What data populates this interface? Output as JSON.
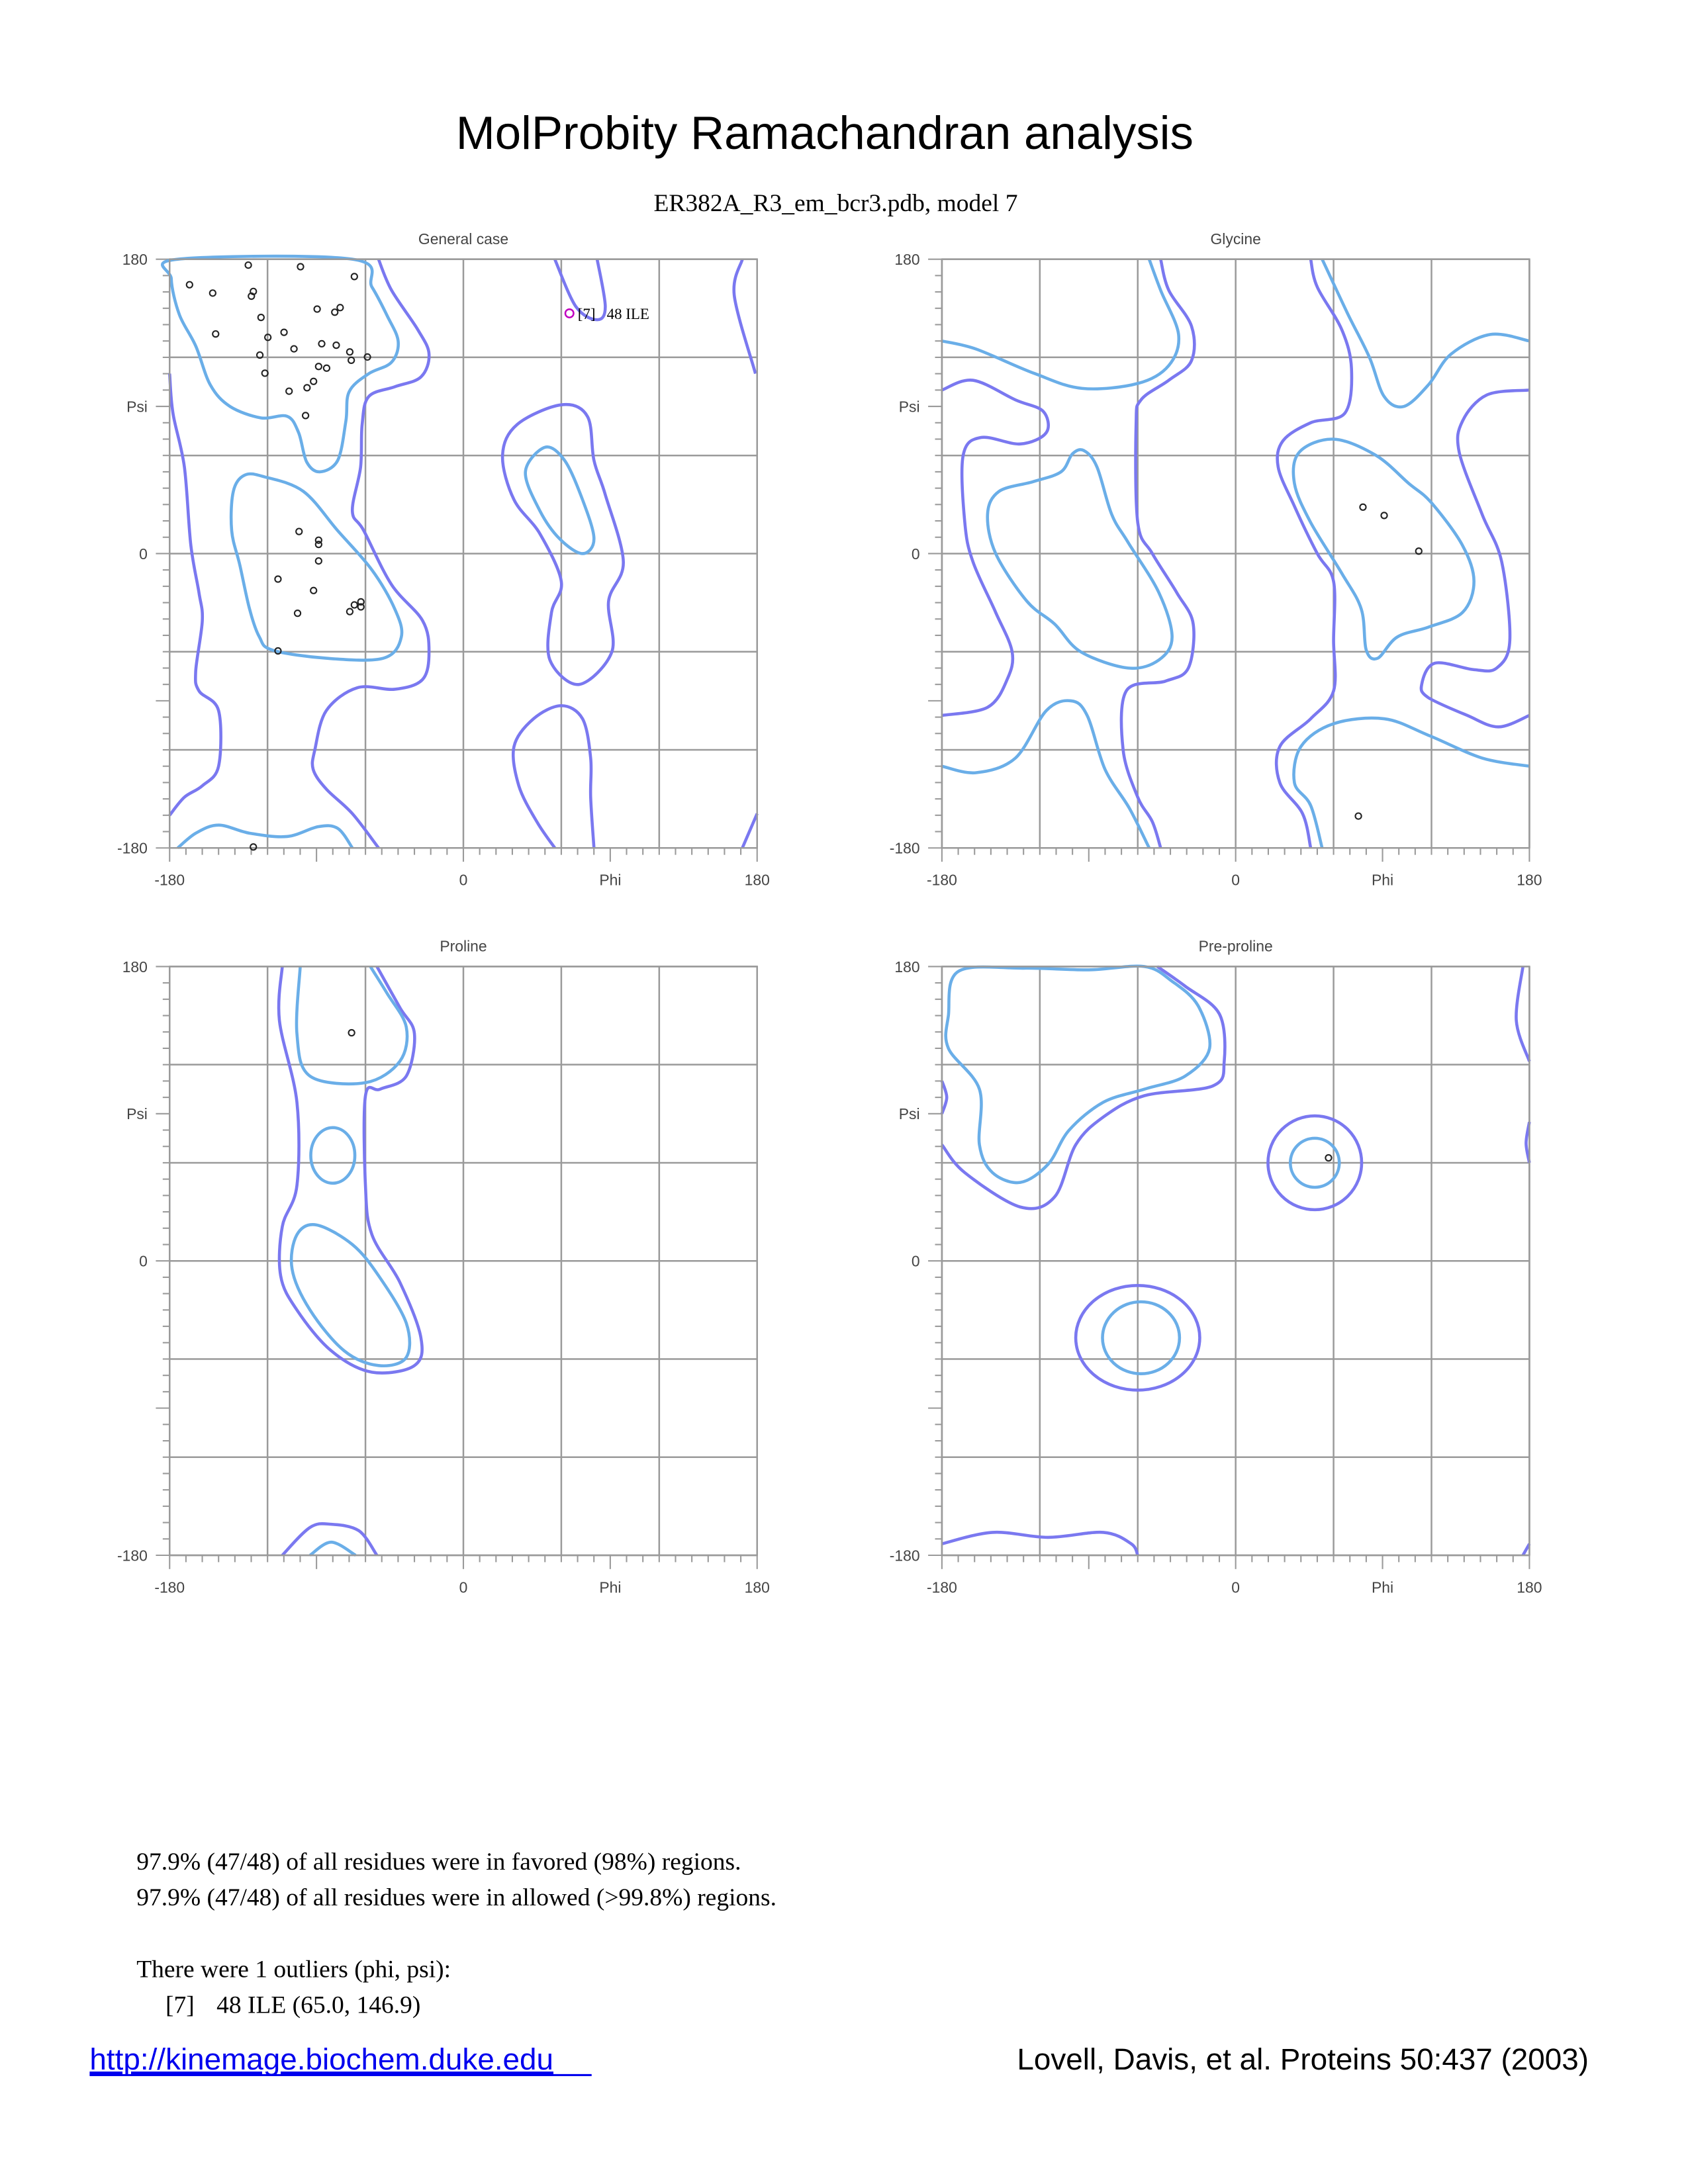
{
  "header": {
    "title": "MolProbity Ramachandran analysis",
    "subtitle": "ER382A_R3_em_bcr3.pdb, model 7"
  },
  "colors": {
    "favored_contour": "#6aaee8",
    "allowed_contour": "#7a78f0",
    "grid": "#9a9a9a",
    "point": "#222222",
    "outlier": "#c000c0",
    "link": "#0000ee"
  },
  "chart_data": [
    {
      "type": "scatter",
      "title": "General case",
      "xlabel": "Phi",
      "ylabel": "Psi",
      "xlim": [
        -180,
        180
      ],
      "ylim": [
        -180,
        180
      ],
      "x_tick_labels": [
        "-180",
        "0",
        "180"
      ],
      "y_tick_labels": [
        "180",
        "0",
        "-180"
      ],
      "grid": true,
      "points": [
        [
          -131.8,
          176.4
        ],
        [
          -99.8,
          175.4
        ],
        [
          -66.8,
          169.4
        ],
        [
          -167.8,
          164.4
        ],
        [
          -153.6,
          159.3
        ],
        [
          -128.7,
          160.3
        ],
        [
          -129.9,
          157.4
        ],
        [
          -89.6,
          149.5
        ],
        [
          -78.8,
          147.6
        ],
        [
          -75.5,
          150.4
        ],
        [
          -124.0,
          144.4
        ],
        [
          -151.8,
          134.3
        ],
        [
          -119.8,
          132.2
        ],
        [
          -109.9,
          135.3
        ],
        [
          -103.8,
          125.2
        ],
        [
          -86.8,
          128.3
        ],
        [
          -77.9,
          127.4
        ],
        [
          -69.6,
          123.3
        ],
        [
          -68.7,
          118.2
        ],
        [
          -58.8,
          120.2
        ],
        [
          -124.7,
          121.4
        ],
        [
          -121.6,
          110.3
        ],
        [
          -88.7,
          114.4
        ],
        [
          -83.8,
          113.4
        ],
        [
          -91.8,
          105.3
        ],
        [
          -95.8,
          101.4
        ],
        [
          -106.8,
          99.3
        ],
        [
          -96.7,
          84.4
        ],
        [
          -100.7,
          13.5
        ],
        [
          -88.7,
          8.2
        ],
        [
          -88.7,
          5.6
        ],
        [
          -88.7,
          -4.5
        ],
        [
          -113.6,
          -15.6
        ],
        [
          -91.8,
          -22.6
        ],
        [
          -101.6,
          -36.5
        ],
        [
          -69.6,
          -35.5
        ],
        [
          -66.8,
          -31.4
        ],
        [
          -62.8,
          -29.5
        ],
        [
          -62.8,
          -32.6
        ],
        [
          -113.6,
          -59.5
        ],
        [
          -128.7,
          -179.4
        ]
      ],
      "outliers": [
        {
          "phi": 65.0,
          "psi": 146.9,
          "label": "[7]   48 ILE"
        }
      ]
    },
    {
      "type": "scatter",
      "title": "Glycine",
      "xlabel": "Phi",
      "ylabel": "Psi",
      "xlim": [
        -180,
        180
      ],
      "ylim": [
        -180,
        180
      ],
      "x_tick_labels": [
        "-180",
        "0",
        "180"
      ],
      "y_tick_labels": [
        "180",
        "0",
        "-180"
      ],
      "grid": true,
      "points": [
        [
          78.0,
          28.4
        ],
        [
          91.0,
          23.3
        ],
        [
          112.2,
          1.5
        ],
        [
          75.2,
          -160.5
        ]
      ],
      "outliers": []
    },
    {
      "type": "scatter",
      "title": "Proline",
      "xlabel": "Phi",
      "ylabel": "Psi",
      "xlim": [
        -180,
        180
      ],
      "ylim": [
        -180,
        180
      ],
      "x_tick_labels": [
        "-180",
        "0",
        "180"
      ],
      "y_tick_labels": [
        "180",
        "0",
        "-180"
      ],
      "grid": true,
      "points": [
        [
          -68.5,
          139.5
        ]
      ],
      "outliers": []
    },
    {
      "type": "scatter",
      "title": "Pre-proline",
      "xlabel": "Phi",
      "ylabel": "Psi",
      "xlim": [
        -180,
        180
      ],
      "ylim": [
        -180,
        180
      ],
      "x_tick_labels": [
        "-180",
        "0",
        "180"
      ],
      "y_tick_labels": [
        "180",
        "0",
        "-180"
      ],
      "grid": true,
      "points": [
        [
          56.9,
          63.0
        ]
      ],
      "outliers": []
    }
  ],
  "summary": {
    "favored": "97.9% (47/48) of all residues were in favored (98%) regions.",
    "allowed": "97.9% (47/48) of all residues were in allowed (>99.8%) regions.",
    "outliers_heading": "There were 1 outliers (phi, psi):",
    "outlier_id": "[7]",
    "outlier_detail": "48 ILE (65.0, 146.9)"
  },
  "footer": {
    "link": "http://kinemage.biochem.duke.edu",
    "citation": "Lovell, Davis, et al. Proteins 50:437 (2003)"
  }
}
